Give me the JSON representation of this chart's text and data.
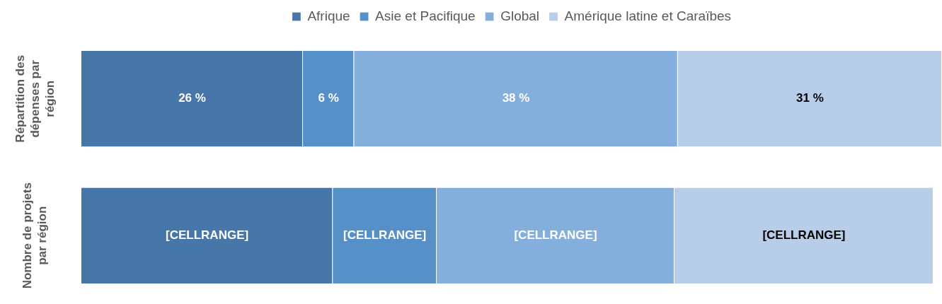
{
  "chart_data": {
    "type": "bar",
    "orientation": "horizontal",
    "stacked": true,
    "tick_labels": "y",
    "legend": "top",
    "categories": [
      "Répartition des dépenses par région",
      "Nombre de projets par région"
    ],
    "series": [
      {
        "name": "Afrique",
        "color": "#4677a8",
        "values": [
          26,
          29.5
        ],
        "value_labels": [
          "26 %",
          "[CELLRANGE]"
        ]
      },
      {
        "name": "Asie et Pacifique",
        "color": "#5591c8",
        "values": [
          6,
          12.2
        ],
        "value_labels": [
          "6 %",
          "[CELLRANGE]"
        ]
      },
      {
        "name": "Global",
        "color": "#84afdc",
        "values": [
          38,
          27.9
        ],
        "value_labels": [
          "38 %",
          "[CELLRANGE]"
        ]
      },
      {
        "name": "Amérique latine et Caraïbes",
        "color": "#b7cde8",
        "values": [
          31,
          30.4
        ],
        "value_labels": [
          "31 %",
          "[CELLRANGE]"
        ]
      }
    ]
  }
}
